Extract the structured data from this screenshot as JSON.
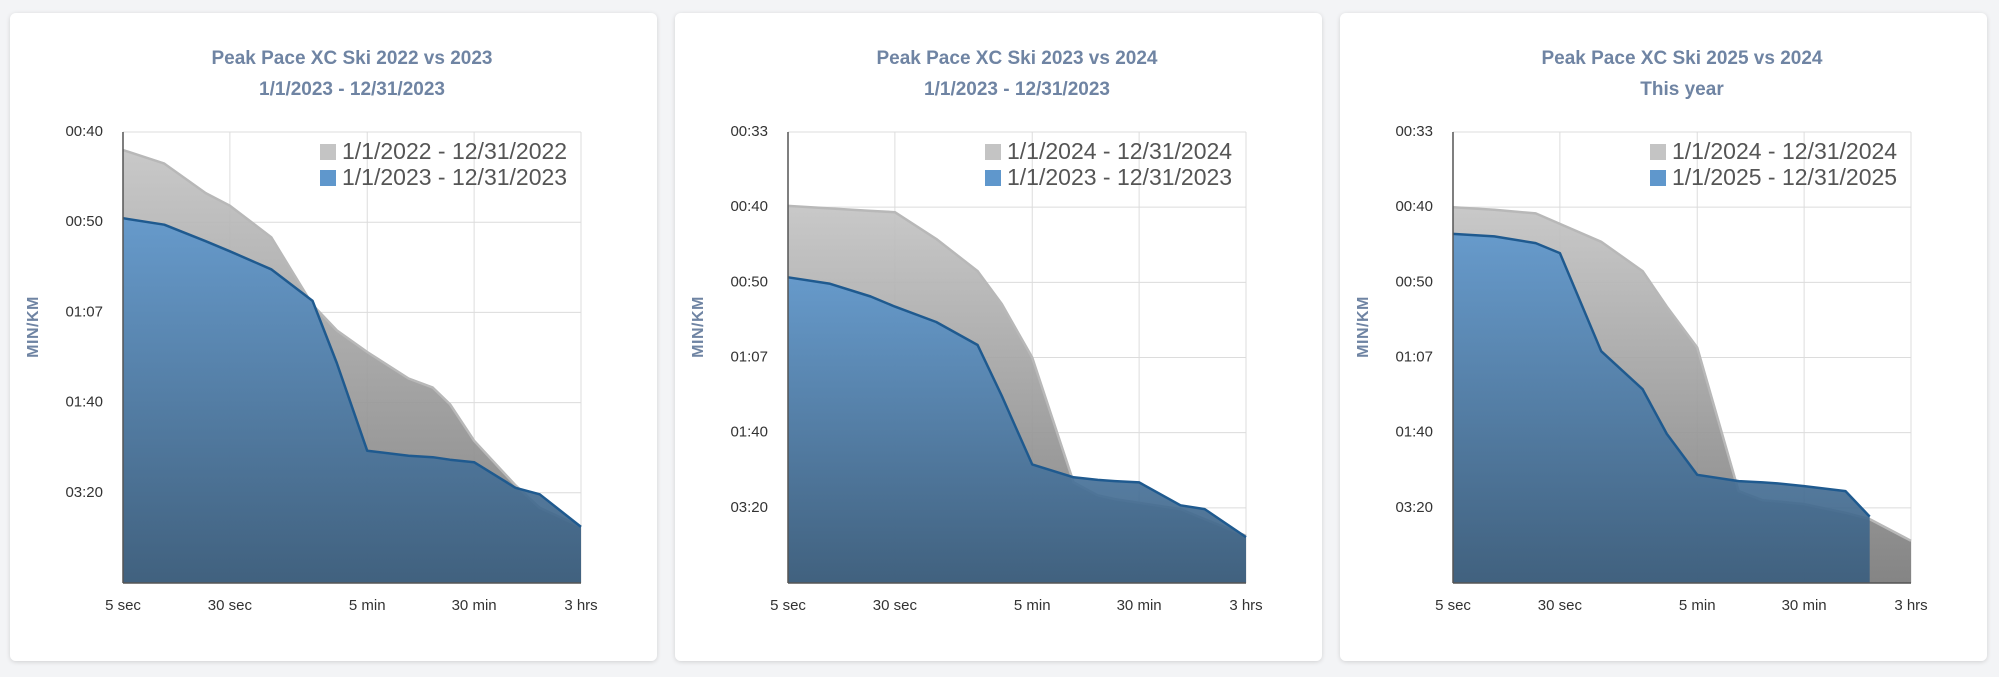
{
  "chart_data": [
    {
      "type": "area",
      "title": "Peak Pace XC Ski 2022 vs 2023",
      "subtitle": "1/1/2023 - 12/31/2023",
      "y_label": "MIN/KM",
      "xscale": "log",
      "xlim": [
        5,
        10800
      ],
      "xticks": [
        {
          "value": 5,
          "label": "5 sec"
        },
        {
          "value": 30,
          "label": "30 sec"
        },
        {
          "value": 300,
          "label": "5 min"
        },
        {
          "value": 1800,
          "label": "30 min"
        },
        {
          "value": 10800,
          "label": "3 hrs"
        }
      ],
      "ylim": [
        0,
        90
      ],
      "yticks": [
        {
          "value": 90,
          "label": "00:40"
        },
        {
          "value": 72,
          "label": "00:50"
        },
        {
          "value": 54,
          "label": "01:07"
        },
        {
          "value": 36,
          "label": "01:40"
        },
        {
          "value": 18,
          "label": "03:20"
        }
      ],
      "grid": true,
      "legend": "top-right",
      "x": [
        5,
        10,
        20,
        30,
        60,
        120,
        180,
        300,
        600,
        900,
        1200,
        1800,
        3600,
        5400,
        10800
      ],
      "series": [
        {
          "name": "1/1/2022 - 12/31/2022",
          "color": "#c4c4c4",
          "line_color": "#b8b8b8",
          "values": [
            86.4,
            83.7,
            77.8,
            75.3,
            69.0,
            55.5,
            50.4,
            46.1,
            40.8,
            39.0,
            35.7,
            28.4,
            19.5,
            15.0,
            11.2
          ]
        },
        {
          "name": "1/1/2023 - 12/31/2023",
          "color": "#5f97cc",
          "line_color": "#1f5a8f",
          "values": [
            72.8,
            71.5,
            68.2,
            66.2,
            62.6,
            56.3,
            43.9,
            26.4,
            25.4,
            25.1,
            24.6,
            24.1,
            19.0,
            17.7,
            11.2
          ]
        }
      ]
    },
    {
      "type": "area",
      "title": "Peak Pace XC Ski 2023 vs 2024",
      "subtitle": "1/1/2023 - 12/31/2023",
      "y_label": "MIN/KM",
      "xscale": "log",
      "xlim": [
        5,
        10800
      ],
      "xticks": [
        {
          "value": 5,
          "label": "5 sec"
        },
        {
          "value": 30,
          "label": "30 sec"
        },
        {
          "value": 300,
          "label": "5 min"
        },
        {
          "value": 1800,
          "label": "30 min"
        },
        {
          "value": 10800,
          "label": "3 hrs"
        }
      ],
      "ylim": [
        0,
        108
      ],
      "yticks": [
        {
          "value": 108,
          "label": "00:33"
        },
        {
          "value": 90,
          "label": "00:40"
        },
        {
          "value": 72,
          "label": "00:50"
        },
        {
          "value": 54,
          "label": "01:07"
        },
        {
          "value": 36,
          "label": "01:40"
        },
        {
          "value": 18,
          "label": "03:20"
        }
      ],
      "grid": true,
      "legend": "top-right",
      "x": [
        5,
        10,
        20,
        30,
        60,
        120,
        180,
        300,
        600,
        900,
        1200,
        1800,
        3600,
        5400,
        10800
      ],
      "series": [
        {
          "name": "1/1/2024 - 12/31/2024",
          "color": "#c4c4c4",
          "line_color": "#b8b8b8",
          "values": [
            90.3,
            89.7,
            89.1,
            88.8,
            82.4,
            74.7,
            66.8,
            54.0,
            24.1,
            21.0,
            20.1,
            19.2,
            17.7,
            15.3,
            11.3
          ]
        },
        {
          "name": "1/1/2023 - 12/31/2023",
          "color": "#5f97cc",
          "line_color": "#1f5a8f",
          "values": [
            73.2,
            71.7,
            68.6,
            66.2,
            62.5,
            57.0,
            44.8,
            28.4,
            25.3,
            24.7,
            24.4,
            24.1,
            18.6,
            17.7,
            11.0
          ]
        }
      ]
    },
    {
      "type": "area",
      "title": "Peak Pace XC Ski 2025 vs 2024",
      "subtitle": "This year",
      "y_label": "MIN/KM",
      "xscale": "log",
      "xlim": [
        5,
        10800
      ],
      "xticks": [
        {
          "value": 5,
          "label": "5 sec"
        },
        {
          "value": 30,
          "label": "30 sec"
        },
        {
          "value": 300,
          "label": "5 min"
        },
        {
          "value": 1800,
          "label": "30 min"
        },
        {
          "value": 10800,
          "label": "3 hrs"
        }
      ],
      "ylim": [
        0,
        108
      ],
      "yticks": [
        {
          "value": 108,
          "label": "00:33"
        },
        {
          "value": 90,
          "label": "00:40"
        },
        {
          "value": 72,
          "label": "00:50"
        },
        {
          "value": 54,
          "label": "01:07"
        },
        {
          "value": 36,
          "label": "01:40"
        },
        {
          "value": 18,
          "label": "03:20"
        }
      ],
      "grid": true,
      "legend": "top-right",
      "x": [
        5,
        10,
        20,
        30,
        60,
        120,
        180,
        300,
        600,
        900,
        1200,
        1800,
        3600,
        5400,
        10800
      ],
      "series": [
        {
          "name": "1/1/2024 - 12/31/2024",
          "color": "#c4c4c4",
          "line_color": "#b8b8b8",
          "values": [
            90.0,
            89.4,
            88.5,
            86.0,
            81.7,
            74.7,
            66.2,
            56.4,
            22.0,
            19.8,
            19.5,
            18.9,
            16.8,
            15.3,
            10.1
          ]
        },
        {
          "name": "1/1/2025 - 12/31/2025",
          "color": "#5f97cc",
          "line_color": "#1f5a8f",
          "values": [
            83.6,
            83.0,
            81.4,
            79.0,
            55.5,
            46.4,
            35.7,
            25.9,
            24.4,
            24.1,
            23.8,
            23.2,
            22.0,
            15.9,
            null
          ]
        }
      ]
    }
  ]
}
